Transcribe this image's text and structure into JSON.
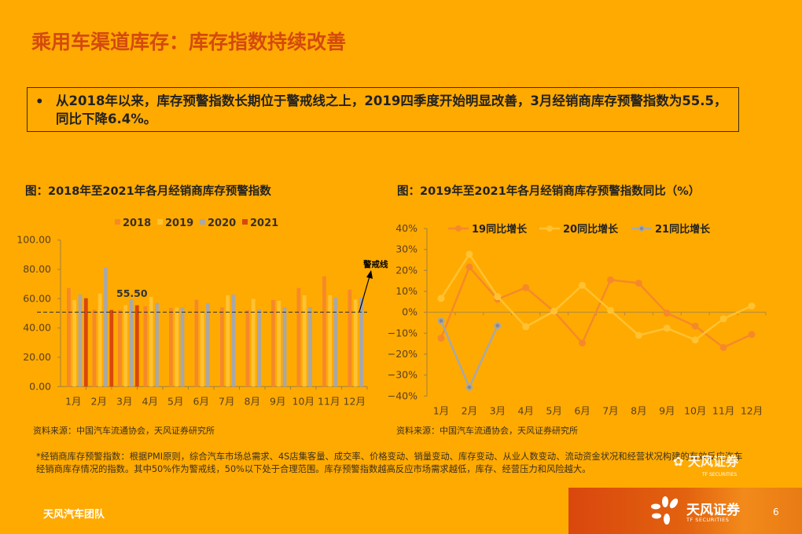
{
  "slide": {
    "title": "乘用车渠道库存：库存指数持续改善",
    "summary_bullet": "•",
    "summary_text": "从2018年以来，库存预警指数长期位于警戒线之上，2019四季度开始明显改善，3月经销商库存预警指数为55.5，同比下降6.4%。",
    "left_chart_title": "图：2018年至2021年各月经销商库存预警指数",
    "right_chart_title": "图：2019年至2021年各月经销商库存预警指数同比（%）",
    "left_source": "资料来源：中国汽车流通协会，天风证券研究所",
    "right_source": "资料来源：中国汽车流通协会，天风证券研究所",
    "footnote": "*经销商库存预警指数：根据PMI原则，综合汽车市场总需求、4S店集客量、成交率、价格变动、销量变动、库存变动、从业人数变动、流动资金状况和经营状况构建的有效反应汽车经销商库存情况的指数。其中50%作为警戒线，50%以下处于合理范围。库存预警指数越高反应市场需求越低，库存、经营压力和风险越大。",
    "footer_team": "天风汽车团队",
    "brand_name": "天风证券",
    "brand_sub": "TF SECURITIES",
    "page_number": "6",
    "colors": {
      "background": "#FFAA00",
      "title": "#D44A0E",
      "s2018": "#F5892A",
      "s2019": "#FFC233",
      "s2020": "#A8A8A8",
      "s2021": "#D9470D"
    }
  },
  "chart_data": [
    {
      "type": "bar",
      "title": "图：2018年至2021年各月经销商库存预警指数",
      "categories": [
        "1月",
        "2月",
        "3月",
        "4月",
        "5月",
        "6月",
        "7月",
        "8月",
        "9月",
        "10月",
        "11月",
        "12月"
      ],
      "series": [
        {
          "name": "2018",
          "color": "#F5892A",
          "values": [
            67.3,
            52.5,
            52.3,
            54.8,
            53.6,
            59.3,
            54.0,
            52.2,
            59.1,
            67.3,
            75.3,
            66.2
          ]
        },
        {
          "name": "2019",
          "color": "#FFC233",
          "values": [
            59.0,
            63.5,
            55.5,
            61.2,
            54.0,
            50.5,
            62.3,
            59.8,
            58.6,
            62.3,
            62.3,
            59.3
          ]
        },
        {
          "name": "2020",
          "color": "#A8A8A8",
          "values": [
            62.8,
            81.2,
            59.5,
            57.1,
            54.1,
            56.8,
            62.8,
            52.7,
            54.1,
            54.3,
            60.6,
            60.8
          ]
        },
        {
          "name": "2021",
          "color": "#D9470D",
          "values": [
            60.3,
            52.3,
            55.5,
            null,
            null,
            null,
            null,
            null,
            null,
            null,
            null,
            null
          ]
        }
      ],
      "yticks": [
        "0.00",
        "20.00",
        "40.00",
        "60.00",
        "80.00",
        "100.00"
      ],
      "ylim": [
        0,
        100
      ],
      "reference_line": {
        "value": 50,
        "label": "警戒线",
        "style": "dashed"
      },
      "annotation": {
        "text": "55.50",
        "category": "3月"
      },
      "legend_position": "top",
      "grid": false,
      "xlabel": "",
      "ylabel": ""
    },
    {
      "type": "line",
      "title": "图：2019年至2021年各月经销商库存预警指数同比（%）",
      "categories": [
        "1月",
        "2月",
        "3月",
        "4月",
        "5月",
        "6月",
        "7月",
        "8月",
        "9月",
        "10月",
        "11月",
        "12月"
      ],
      "series": [
        {
          "name": "19同比增长",
          "color": "#F5892A",
          "values": [
            -12.4,
            21.6,
            6.2,
            11.8,
            0.4,
            -14.7,
            15.5,
            13.9,
            -0.4,
            -6.6,
            -16.8,
            -10.6
          ]
        },
        {
          "name": "20同比增长",
          "color": "#FFC233",
          "values": [
            6.6,
            27.7,
            7.5,
            -6.9,
            0.5,
            12.9,
            0.9,
            -11.0,
            -7.6,
            -13.2,
            -3.1,
            3.0
          ]
        },
        {
          "name": "21同比增长",
          "color": "#A8A8A8",
          "values": [
            -4.1,
            -35.8,
            -6.4,
            null,
            null,
            null,
            null,
            null,
            null,
            null,
            null,
            null
          ]
        }
      ],
      "yticks": [
        "-40%",
        "-30%",
        "-20%",
        "-10%",
        "0%",
        "10%",
        "20%",
        "30%",
        "40%"
      ],
      "ylim": [
        -40,
        40
      ],
      "legend_position": "top",
      "grid": false,
      "xlabel": "",
      "ylabel": ""
    }
  ]
}
